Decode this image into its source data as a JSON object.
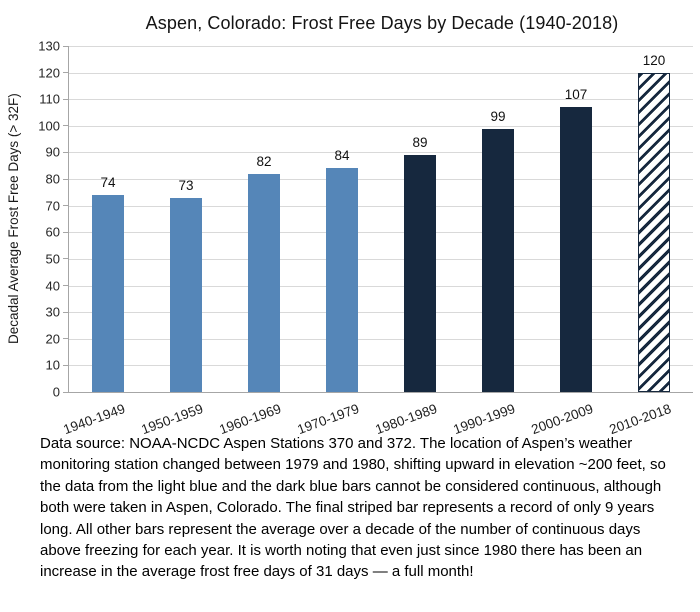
{
  "chart_data": {
    "type": "bar",
    "title": "Aspen, Colorado: Frost Free Days by Decade (1940-2018)",
    "categories": [
      "1940-1949",
      "1950-1959",
      "1960-1969",
      "1970-1979",
      "1980-1989",
      "1990-1999",
      "2000-2009",
      "2010-2018"
    ],
    "values": [
      74,
      73,
      82,
      84,
      89,
      99,
      107,
      120
    ],
    "bar_styles": [
      "light",
      "light",
      "light",
      "light",
      "dark",
      "dark",
      "dark",
      "striped"
    ],
    "xlabel": "",
    "ylabel": "Decadal Average Frost Free Days (> 32F)",
    "ylim": [
      0,
      130
    ],
    "ytick_step": 10,
    "grid": true,
    "legend": "none"
  },
  "colors": {
    "light_blue": "#5586b8",
    "dark_navy": "#16283e",
    "gridline": "#d9d9d9",
    "axis": "#a6a6a6"
  },
  "caption": "Data source: NOAA-NCDC Aspen Stations 370 and 372. The location of Aspen’s weather monitoring station changed between 1979 and 1980, shifting upward in elevation ~200 feet, so the data from the light blue and the dark blue bars cannot be considered continuous, although both were taken in Aspen, Colorado. The final striped bar represents a record of only 9 years long. All other bars represent the average over a decade of the number of continuous days above freezing for each year. It is worth noting that even just since 1980 there has been an increase in the average frost free days of 31 days — a full month!"
}
